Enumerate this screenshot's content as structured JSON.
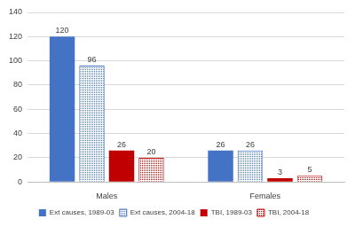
{
  "chart_data": {
    "type": "bar",
    "categories": [
      "Males",
      "Females"
    ],
    "series": [
      {
        "name": "Ext causes, 1989-03",
        "color": "#4472c4",
        "line_style": "solid",
        "values": [
          120,
          26
        ]
      },
      {
        "name": "Ext causes, 2004-18",
        "color": "#4472c4",
        "line_style": "dotted",
        "values": [
          96,
          26
        ]
      },
      {
        "name": "TBI, 1989-03",
        "color": "#c00000",
        "line_style": "solid",
        "values": [
          26,
          3
        ]
      },
      {
        "name": "TBI, 2004-18",
        "color": "#c00000",
        "line_style": "dotted",
        "values": [
          20,
          5
        ]
      }
    ],
    "ylim": [
      0,
      140
    ],
    "yticks": [
      0,
      20,
      40,
      60,
      80,
      100,
      120,
      140
    ],
    "grid": true,
    "legend": "bottom",
    "data_labels": true
  }
}
